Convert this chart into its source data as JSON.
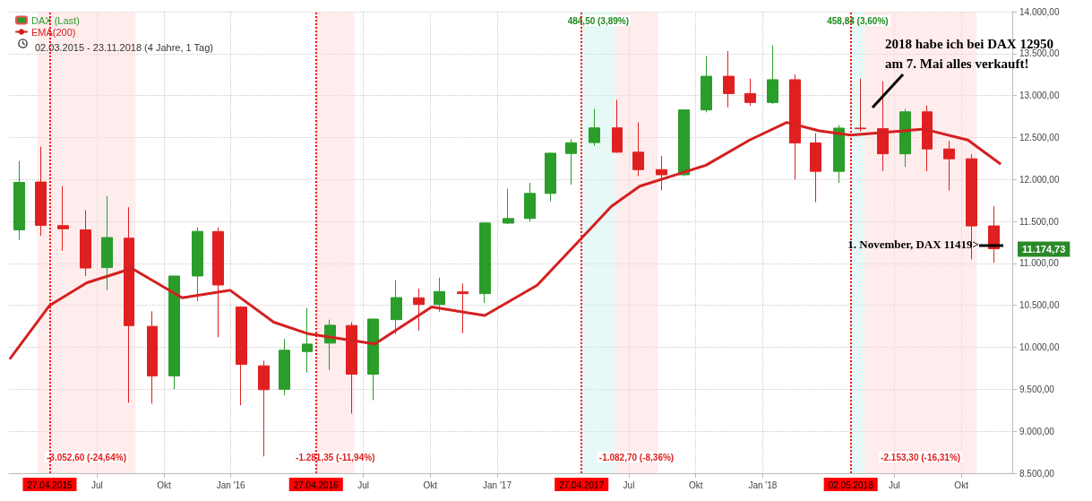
{
  "chart_data": {
    "type": "candlestick",
    "subtitle": "02.03.2015 - 23.11.2018 (4 Jahre, 1 Tag)",
    "x": [
      "2015-03-16",
      "2015-04-15",
      "2015-05-15",
      "2015-06-15",
      "2015-07-15",
      "2015-08-14",
      "2015-09-15",
      "2015-10-15",
      "2015-11-16",
      "2015-12-15",
      "2016-01-15",
      "2016-02-15",
      "2016-03-15",
      "2016-04-15",
      "2016-05-16",
      "2016-06-15",
      "2016-07-15",
      "2016-08-15",
      "2016-09-15",
      "2016-10-14",
      "2016-11-15",
      "2016-12-15",
      "2017-01-16",
      "2017-02-15",
      "2017-03-15",
      "2017-04-13",
      "2017-05-15",
      "2017-06-15",
      "2017-07-14",
      "2017-08-15",
      "2017-09-15",
      "2017-10-16",
      "2017-11-15",
      "2017-12-15",
      "2018-01-15",
      "2018-02-15",
      "2018-03-15",
      "2018-04-16",
      "2018-05-15",
      "2018-06-15",
      "2018-07-16",
      "2018-08-15",
      "2018-09-14",
      "2018-10-15",
      "2018-11-15"
    ],
    "series": [
      {
        "name": "DAX (Last)",
        "color": "#2a9d2a",
        "colors": [
          "#2a9d2a",
          "#e02020",
          "#e02020",
          "#e02020",
          "#2a9d2a",
          "#e02020",
          "#e02020",
          "#2a9d2a",
          "#2a9d2a",
          "#e02020",
          "#e02020",
          "#e02020",
          "#2a9d2a",
          "#2a9d2a",
          "#2a9d2a",
          "#e02020",
          "#2a9d2a",
          "#2a9d2a",
          "#e02020",
          "#2a9d2a",
          "#e02020",
          "#2a9d2a",
          "#2a9d2a",
          "#2a9d2a",
          "#2a9d2a",
          "#2a9d2a",
          "#2a9d2a",
          "#e02020",
          "#e02020",
          "#e02020",
          "#2a9d2a",
          "#2a9d2a",
          "#e02020",
          "#e02020",
          "#2a9d2a",
          "#e02020",
          "#e02020",
          "#2a9d2a",
          "#e02020",
          "#e02020",
          "#2a9d2a",
          "#e02020",
          "#e02020",
          "#e02020",
          "#e02020"
        ],
        "ohlc": [
          [
            11400,
            12220,
            11280,
            11966
          ],
          [
            11970,
            12390,
            11330,
            11454
          ],
          [
            11450,
            11920,
            11150,
            11413
          ],
          [
            11400,
            11635,
            10850,
            10945
          ],
          [
            10950,
            11800,
            10680,
            11308
          ],
          [
            11300,
            11670,
            9340,
            10259
          ],
          [
            10250,
            10430,
            9330,
            9660
          ],
          [
            9660,
            10850,
            9500,
            10850
          ],
          [
            10850,
            11430,
            10550,
            11382
          ],
          [
            11380,
            11430,
            10120,
            10743
          ],
          [
            10480,
            10490,
            9310,
            9798
          ],
          [
            9780,
            9840,
            8700,
            9495
          ],
          [
            9500,
            10100,
            9430,
            9965
          ],
          [
            9950,
            10470,
            9700,
            10039
          ],
          [
            10050,
            10330,
            9730,
            10263
          ],
          [
            10260,
            10300,
            9210,
            9680
          ],
          [
            9680,
            10340,
            9370,
            10337
          ],
          [
            10330,
            10800,
            10160,
            10593
          ],
          [
            10590,
            10700,
            10200,
            10511
          ],
          [
            10510,
            10830,
            10420,
            10665
          ],
          [
            10660,
            10760,
            10170,
            10640
          ],
          [
            10640,
            11490,
            10530,
            11481
          ],
          [
            11480,
            11890,
            11470,
            11535
          ],
          [
            11535,
            11960,
            11500,
            11834
          ],
          [
            11834,
            12320,
            11740,
            12313
          ],
          [
            12310,
            12480,
            11940,
            12438
          ],
          [
            12440,
            12840,
            12400,
            12615
          ],
          [
            12615,
            12950,
            12320,
            12325
          ],
          [
            12325,
            12680,
            12040,
            12118
          ],
          [
            12118,
            12280,
            11870,
            12056
          ],
          [
            12056,
            12830,
            12040,
            12829
          ],
          [
            12829,
            13470,
            12800,
            13230
          ],
          [
            13230,
            13530,
            12860,
            13024
          ],
          [
            13024,
            13200,
            12880,
            12918
          ],
          [
            12918,
            13600,
            12900,
            13189
          ],
          [
            13189,
            13250,
            12000,
            12436
          ],
          [
            12436,
            12550,
            11730,
            12097
          ],
          [
            12097,
            12650,
            11960,
            12612
          ],
          [
            12612,
            13200,
            12570,
            12605
          ],
          [
            12605,
            13170,
            12100,
            12306
          ],
          [
            12306,
            12840,
            12150,
            12806
          ],
          [
            12806,
            12880,
            12100,
            12364
          ],
          [
            12364,
            12460,
            11870,
            12247
          ],
          [
            12247,
            12300,
            11050,
            11447
          ],
          [
            11447,
            11680,
            11010,
            11175
          ]
        ]
      },
      {
        "name": "EMA(200)",
        "type": "line",
        "color": "#d42020",
        "x": [
          "2015-03-04",
          "2015-04-27",
          "2015-06-17",
          "2015-08-18",
          "2015-10-26",
          "2015-12-31",
          "2016-02-29",
          "2016-04-17",
          "2016-07-17",
          "2016-10-03",
          "2016-12-15",
          "2017-02-25",
          "2017-04-27",
          "2017-06-07",
          "2017-07-16",
          "2017-10-15",
          "2017-12-14",
          "2018-02-03",
          "2018-03-20",
          "2018-05-02",
          "2018-08-11",
          "2018-10-10",
          "2018-11-23"
        ],
        "values": [
          9870,
          10500,
          10770,
          10940,
          10590,
          10680,
          10300,
          10160,
          10040,
          10480,
          10380,
          10740,
          11300,
          11680,
          11920,
          12170,
          12470,
          12680,
          12580,
          12530,
          12600,
          12470,
          12190
        ]
      }
    ],
    "xlim": [
      "2015-03-02",
      "2018-12-10"
    ],
    "xticks": [
      {
        "value": "2015-07-01",
        "label": "Jul"
      },
      {
        "value": "2015-10-01",
        "label": "Okt"
      },
      {
        "value": "2016-01-01",
        "label": "Jan '16"
      },
      {
        "value": "2016-07-01",
        "label": "Jul"
      },
      {
        "value": "2016-10-01",
        "label": "Okt"
      },
      {
        "value": "2017-01-01",
        "label": "Jan '17"
      },
      {
        "value": "2017-07-01",
        "label": "Jul"
      },
      {
        "value": "2017-10-01",
        "label": "Okt"
      },
      {
        "value": "2018-01-01",
        "label": "Jan '18"
      },
      {
        "value": "2018-07-01",
        "label": "Jul"
      },
      {
        "value": "2018-10-01",
        "label": "Okt"
      }
    ],
    "ylim": [
      8500,
      14000
    ],
    "yticks": [
      {
        "value": 8500,
        "label": "8.500,00"
      },
      {
        "value": 9000,
        "label": "9.000,00"
      },
      {
        "value": 9500,
        "label": "9.500,00"
      },
      {
        "value": 10000,
        "label": "10.000,00"
      },
      {
        "value": 10500,
        "label": "10.500,00"
      },
      {
        "value": 11000,
        "label": "11.000,00"
      },
      {
        "value": 11500,
        "label": "11.500,00"
      },
      {
        "value": 12000,
        "label": "12.000,00"
      },
      {
        "value": 12500,
        "label": "12.500,00"
      },
      {
        "value": 13000,
        "label": "13.000,00"
      },
      {
        "value": 13500,
        "label": "13.500,00"
      },
      {
        "value": 14000,
        "label": "14.000,00"
      }
    ],
    "ref_lines": [
      {
        "axis": "x",
        "value": "2015-04-27",
        "label": "27.04.2015",
        "color": "#ff0000",
        "line_style": "dotted"
      },
      {
        "axis": "x",
        "value": "2016-04-27",
        "label": "27.04.2016",
        "color": "#ff0000",
        "line_style": "dotted"
      },
      {
        "axis": "x",
        "value": "2017-04-27",
        "label": "27.04.2017",
        "color": "#ff0000",
        "line_style": "dotted"
      },
      {
        "axis": "x",
        "value": "2018-05-02",
        "label": "02.05.2018",
        "color": "#ff0000",
        "line_style": "dotted"
      }
    ],
    "bands": [
      {
        "axis": "x",
        "from": "2015-04-10",
        "to": "2015-08-23",
        "label": "-3.052,60 (-24,64%)",
        "color": "#ffd9dc"
      },
      {
        "axis": "x",
        "from": "2016-04-27",
        "to": "2016-06-19",
        "label": "-1.281,35 (-11,94%)",
        "color": "#ffd9dc"
      },
      {
        "axis": "x",
        "from": "2017-04-27",
        "to": "2017-06-12",
        "label": "484,50 (3,89%)",
        "color": "#cdf3ee"
      },
      {
        "axis": "x",
        "from": "2017-06-12",
        "to": "2017-08-10",
        "label": "-1.082,70 (-8,36%)",
        "color": "#ffd9dc"
      },
      {
        "axis": "x",
        "from": "2018-05-02",
        "to": "2018-05-21",
        "label": "458,84 (3,60%)",
        "color": "#cdf3ee"
      },
      {
        "axis": "x",
        "from": "2018-05-21",
        "to": "2018-10-22",
        "label": "-2.153,30 (-16,31%)",
        "color": "#ffd9dc"
      }
    ],
    "annotations": [
      "2018 habe ich bei DAX 12950\nam 7. Mai alles verkauft!",
      "1. November, DAX 11419>",
      "11.174,73"
    ],
    "grid": true,
    "legend": "top left"
  }
}
